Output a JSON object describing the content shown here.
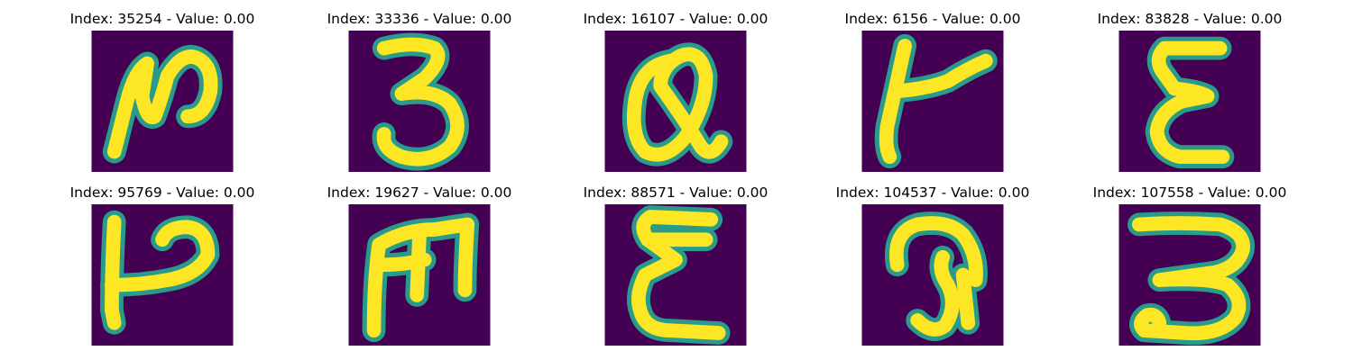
{
  "colors": {
    "background": "#440154",
    "stroke_core": "#fde725",
    "stroke_edge": "#2a9a8a"
  },
  "panels": [
    {
      "title": "Index: 35254 - Value: 0.00",
      "glyph": "N"
    },
    {
      "title": "Index: 33336 - Value: 0.00",
      "glyph": "3"
    },
    {
      "title": "Index: 16107 - Value: 0.00",
      "glyph": "Q"
    },
    {
      "title": "Index: 6156 - Value: 0.00",
      "glyph": "T"
    },
    {
      "title": "Index: 83828 - Value: 0.00",
      "glyph": "E"
    },
    {
      "title": "Index: 95769 - Value: 0.00",
      "glyph": "P"
    },
    {
      "title": "Index: 19627 - Value: 0.00",
      "glyph": "M"
    },
    {
      "title": "Index: 88571 - Value: 0.00",
      "glyph": "Σ"
    },
    {
      "title": "Index: 104537 - Value: 0.00",
      "glyph": "P"
    },
    {
      "title": "Index: 107558 - Value: 0.00",
      "glyph": "3"
    }
  ]
}
